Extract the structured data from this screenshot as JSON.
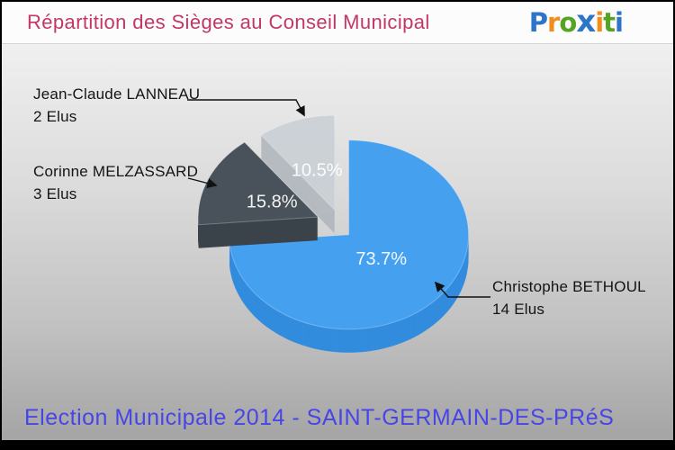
{
  "header": {
    "title": "Répartition des Sièges au Conseil Municipal",
    "title_color": "#c23767",
    "logo_letters": [
      {
        "ch": "P",
        "color": "#2e74c9",
        "big": false
      },
      {
        "ch": "r",
        "color": "#f28c1b",
        "big": false
      },
      {
        "ch": "o",
        "color": "#54a322",
        "big": false
      },
      {
        "ch": "x",
        "color": "#2e74c9",
        "big": true
      },
      {
        "ch": "i",
        "color": "#f28c1b",
        "big": false
      },
      {
        "ch": "t",
        "color": "#54a322",
        "big": false
      },
      {
        "ch": "i",
        "color": "#2e74c9",
        "big": false
      }
    ]
  },
  "footer": {
    "text": "Election Municipale 2014 - SAINT-GERMAIN-DES-PRéS",
    "color": "#4845e6"
  },
  "chart_data": {
    "type": "pie",
    "title": "Répartition des Sièges au Conseil Municipal",
    "total_seats": 19,
    "unit": "Elus",
    "style": "3d-exploded",
    "legend_position": "callouts",
    "percent_label_color": "#ffffff",
    "slices": [
      {
        "label": "Christophe BETHOUL",
        "sublabel": "14 Elus",
        "seats": 14,
        "percent": 73.7,
        "percent_label": "73.7%",
        "color": "#45a1f0",
        "side_color": "#338cde"
      },
      {
        "label": "Corinne MELZASSARD",
        "sublabel": "3 Elus",
        "seats": 3,
        "percent": 15.8,
        "percent_label": "15.8%",
        "color": "#49515a",
        "side_color": "#3b424a"
      },
      {
        "label": "Jean-Claude LANNEAU",
        "sublabel": "2 Elus",
        "seats": 2,
        "percent": 10.5,
        "percent_label": "10.5%",
        "color": "#c9cfd5",
        "side_color": "#aeb5bc",
        "opacity": 0.85
      }
    ]
  }
}
